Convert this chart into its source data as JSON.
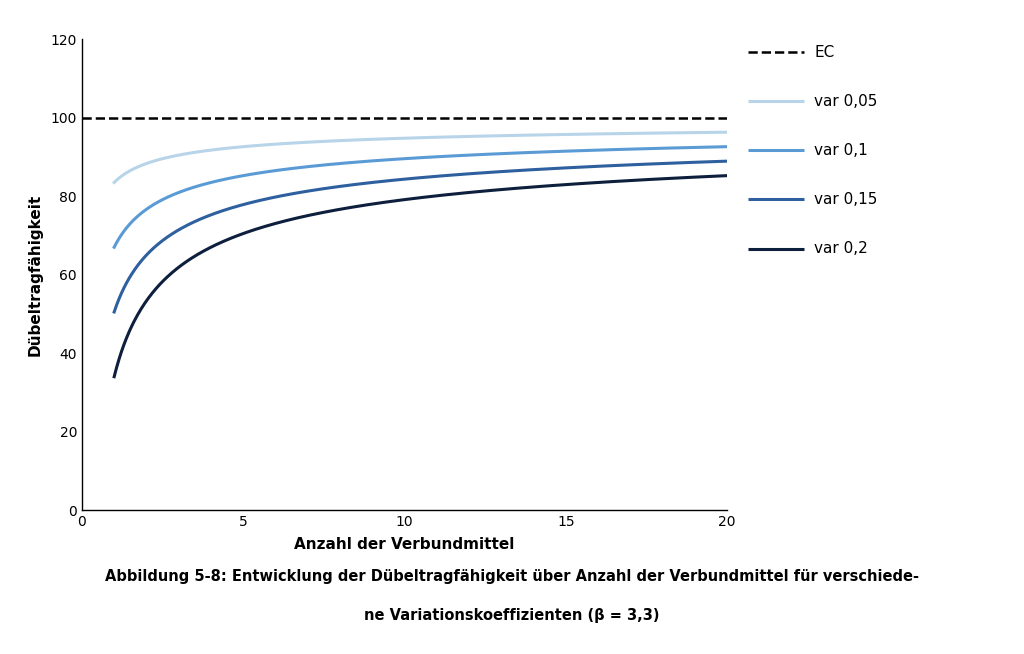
{
  "title": "",
  "xlabel": "Anzahl der Verbundmittel",
  "ylabel": "Dübeltragfähigkeit",
  "caption_line1": "Abbildung 5-8: Entwicklung der Dübeltragfähigkeit über Anzahl der Verbundmittel für verschiede-",
  "caption_line2": "ne Variationskoeffizienten (β = 3,3)",
  "xlim": [
    0,
    20
  ],
  "ylim": [
    0,
    120
  ],
  "xticks": [
    0,
    5,
    10,
    15,
    20
  ],
  "yticks": [
    0,
    20,
    40,
    60,
    80,
    100,
    120
  ],
  "ec_value": 100,
  "beta": 3.3,
  "variations": [
    0.05,
    0.1,
    0.15,
    0.2
  ],
  "line_colors": [
    "#b8d4e8",
    "#5b9bd5",
    "#2e5f9e",
    "#0d1f3c"
  ],
  "legend_labels": [
    "EC",
    "var 0,05",
    "var 0,1",
    "var 0,15",
    "var 0,2"
  ],
  "background_color": "#ffffff",
  "fig_width": 10.24,
  "fig_height": 6.54,
  "dpi": 100
}
